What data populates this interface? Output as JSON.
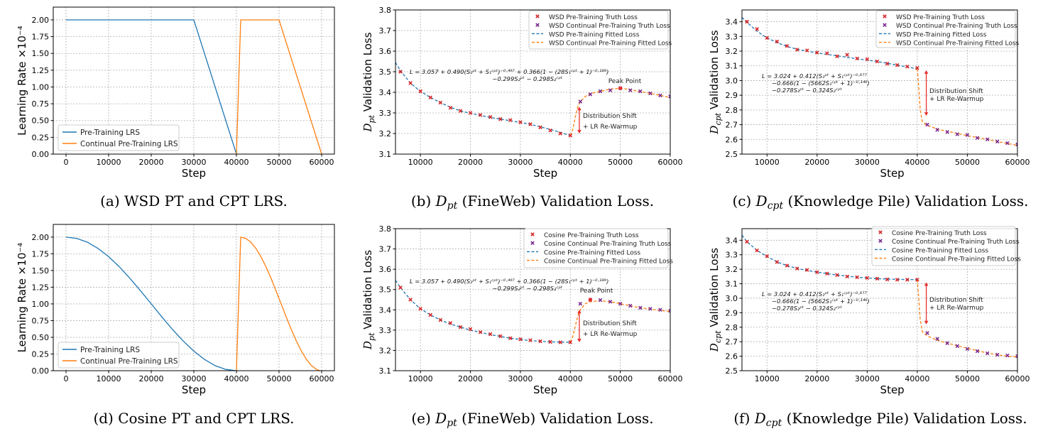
{
  "colors": {
    "pt_line": "#1f77b4",
    "cpt_line": "#ff7f0e",
    "pt_marker": "#d62728",
    "cpt_marker": "#7b2d8e",
    "arrow": "#e8302f",
    "peak": "#e8302f"
  },
  "chart_data": [
    {
      "id": "a",
      "type": "line",
      "xlabel": "Step",
      "ylabel": "Learning Rate ×10⁻⁴",
      "xlim": [
        -3000,
        63000
      ],
      "ylim": [
        0,
        2.19
      ],
      "xticks": [
        0,
        10000,
        20000,
        30000,
        40000,
        50000,
        60000
      ],
      "yticks": [
        "0.00",
        "0.25",
        "0.50",
        "0.75",
        "1.00",
        "1.25",
        "1.50",
        "1.75",
        "2.00"
      ],
      "grid": true,
      "legend_placement": "lower-left",
      "series": [
        {
          "name": "Pre-Training LRS",
          "style": "solid",
          "color": "#1f77b4",
          "x": [
            0,
            30000,
            40000
          ],
          "y": [
            2,
            2,
            0
          ]
        },
        {
          "name": "Continual Pre-Training LRS",
          "style": "solid",
          "color": "#ff7f0e",
          "x": [
            40000,
            41000,
            50000,
            60000
          ],
          "y": [
            0,
            2,
            2,
            0
          ]
        }
      ],
      "caption": {
        "prefix": "(a) WSD PT and CPT LRS."
      }
    },
    {
      "id": "b",
      "type": "scatter+line",
      "xlabel": "Step",
      "ylabel": {
        "symbol": "D",
        "sub": "pt",
        "text": " Validation Loss"
      },
      "xlim": [
        5000,
        60000
      ],
      "ylim": [
        3.1,
        3.8
      ],
      "xticks": [
        10000,
        20000,
        30000,
        40000,
        50000,
        60000
      ],
      "yticks": [
        "3.1",
        "3.2",
        "3.3",
        "3.4",
        "3.5",
        "3.6",
        "3.7",
        "3.8"
      ],
      "grid": true,
      "legend_placement": "upper-right",
      "series": [
        {
          "name": "WSD Pre-Training Truth Loss",
          "style": "marker",
          "color": "#d62728",
          "x": [
            6000,
            8000,
            10000,
            12000,
            14000,
            16000,
            18000,
            20000,
            22000,
            24000,
            26000,
            28000,
            30000,
            32000,
            34000,
            36000,
            38000,
            40000
          ],
          "y": [
            3.5,
            3.445,
            3.405,
            3.375,
            3.35,
            3.325,
            3.31,
            3.3,
            3.29,
            3.28,
            3.27,
            3.265,
            3.255,
            3.245,
            3.23,
            3.215,
            3.2,
            3.19
          ]
        },
        {
          "name": "WSD Continual Pre-Training Truth Loss",
          "style": "marker",
          "color": "#7b2d8e",
          "x": [
            42000,
            44000,
            46000,
            48000,
            50000,
            52000,
            54000,
            56000,
            58000,
            60000
          ],
          "y": [
            3.355,
            3.39,
            3.405,
            3.41,
            3.42,
            3.41,
            3.405,
            3.395,
            3.385,
            3.38
          ]
        },
        {
          "name": "WSD Pre-Training Fitted Loss",
          "style": "dashed",
          "color": "#1f77b4",
          "x": [
            5000,
            6000,
            8000,
            10000,
            12000,
            14000,
            16000,
            18000,
            20000,
            24000,
            28000,
            32000,
            36000,
            40000
          ],
          "y": [
            3.545,
            3.505,
            3.445,
            3.405,
            3.375,
            3.35,
            3.328,
            3.31,
            3.298,
            3.278,
            3.262,
            3.245,
            3.22,
            3.19
          ]
        },
        {
          "name": "WSD Continual Pre-Training Fitted Loss",
          "style": "dashed",
          "color": "#ff7f0e",
          "x": [
            40000,
            40500,
            41000,
            41500,
            42000,
            43000,
            44000,
            46000,
            48000,
            50000,
            52000,
            54000,
            56000,
            58000,
            60000
          ],
          "y": [
            3.19,
            3.22,
            3.28,
            3.33,
            3.355,
            3.38,
            3.393,
            3.405,
            3.415,
            3.42,
            3.413,
            3.403,
            3.395,
            3.385,
            3.375
          ]
        }
      ],
      "peak": {
        "label": "Peak Point",
        "x": 50000,
        "y": 3.42
      },
      "arrow": {
        "x": 41800,
        "y_from": 3.33,
        "y_to": 3.2,
        "line1": "Distribution Shift",
        "line2": "+ LR Re-Warmup"
      },
      "formula": [
        "L = 3.057 + 0.490(S₁ᵖᵗ + S₁ᶜᵖᵗ)⁻⁰·⁴⁹⁷ + 0.366(1 − (28S₁ᶜᵖᵗ + 1)⁻⁰·¹⁸⁹)",
        "−0.299S₂ᵖᵗ − 0.298S₂ᶜᵖᵗ"
      ],
      "caption": {
        "prefix": "(b) ",
        "symbol": "D",
        "sub": "pt",
        "suffix": " (FineWeb) Validation Loss."
      }
    },
    {
      "id": "c",
      "type": "scatter+line",
      "xlabel": "Step",
      "ylabel": {
        "symbol": "D",
        "sub": "cpt",
        "text": " Validation Loss"
      },
      "xlim": [
        5000,
        60000
      ],
      "ylim": [
        2.5,
        3.48
      ],
      "xticks": [
        10000,
        20000,
        30000,
        40000,
        50000,
        60000
      ],
      "yticks": [
        "2.5",
        "2.6",
        "2.7",
        "2.8",
        "2.9",
        "3.0",
        "3.1",
        "3.2",
        "3.3",
        "3.4"
      ],
      "grid": true,
      "legend_placement": "upper-right",
      "series": [
        {
          "name": "WSD Pre-Training Truth Loss",
          "style": "marker",
          "color": "#d62728",
          "x": [
            6000,
            8000,
            10000,
            12000,
            14000,
            16000,
            18000,
            20000,
            22000,
            24000,
            26000,
            28000,
            30000,
            32000,
            34000,
            36000,
            38000,
            40000
          ],
          "y": [
            3.4,
            3.35,
            3.29,
            3.265,
            3.235,
            3.21,
            3.205,
            3.19,
            3.185,
            3.165,
            3.175,
            3.15,
            3.145,
            3.13,
            3.115,
            3.105,
            3.095,
            3.085
          ]
        },
        {
          "name": "WSD Continual Pre-Training Truth Loss",
          "style": "marker",
          "color": "#7b2d8e",
          "x": [
            42000,
            44000,
            46000,
            48000,
            50000,
            52000,
            54000,
            56000,
            58000,
            60000
          ],
          "y": [
            2.7,
            2.665,
            2.65,
            2.635,
            2.63,
            2.61,
            2.6,
            2.585,
            2.575,
            2.565
          ]
        },
        {
          "name": "WSD Pre-Training Fitted Loss",
          "style": "dashed",
          "color": "#1f77b4",
          "x": [
            5000,
            6000,
            8000,
            10000,
            12000,
            14000,
            16000,
            18000,
            20000,
            24000,
            28000,
            32000,
            36000,
            40000
          ],
          "y": [
            3.43,
            3.395,
            3.335,
            3.29,
            3.258,
            3.232,
            3.213,
            3.2,
            3.188,
            3.168,
            3.148,
            3.13,
            3.105,
            3.08
          ]
        },
        {
          "name": "WSD Continual Pre-Training Fitted Loss",
          "style": "dashed",
          "color": "#ff7f0e",
          "x": [
            40000,
            40300,
            40600,
            41000,
            42000,
            44000,
            46000,
            48000,
            50000,
            52000,
            54000,
            56000,
            58000,
            60000
          ],
          "y": [
            3.08,
            2.95,
            2.8,
            2.72,
            2.695,
            2.67,
            2.655,
            2.64,
            2.625,
            2.612,
            2.6,
            2.585,
            2.572,
            2.56
          ]
        }
      ],
      "arrow": {
        "x": 41800,
        "y_from": 3.07,
        "y_to": 2.76,
        "line1": "Distribution Shift",
        "line2": "+ LR Re-Warmup"
      },
      "formula": [
        "L = 3.024 + 0.412(S₁ᵖᵗ + S₁ᶜᵖᵗ)⁻⁰·⁶⁷⁷",
        "−0.666(1 − (5662S₁ᶜᵖᵗ + 1)⁻⁰·¹⁴⁶)",
        "−0.278S₂ᵖᵗ − 0.324S₂ᶜᵖᵗ"
      ],
      "caption": {
        "prefix": "(c) ",
        "symbol": "D",
        "sub": "cpt",
        "suffix": " (Knowledge Pile) Validation Loss."
      }
    },
    {
      "id": "d",
      "type": "line",
      "xlabel": "Step",
      "ylabel": "Learning Rate ×10⁻⁴",
      "xlim": [
        -3000,
        63000
      ],
      "ylim": [
        0,
        2.19
      ],
      "xticks": [
        0,
        10000,
        20000,
        30000,
        40000,
        50000,
        60000
      ],
      "yticks": [
        "0.00",
        "0.25",
        "0.50",
        "0.75",
        "1.00",
        "1.25",
        "1.50",
        "1.75",
        "2.00"
      ],
      "grid": true,
      "legend_placement": "lower-left",
      "series": [
        {
          "name": "Pre-Training LRS",
          "style": "solid",
          "color": "#1f77b4",
          "x": [
            0,
            2500,
            5000,
            7500,
            10000,
            12500,
            15000,
            17500,
            20000,
            22500,
            25000,
            27500,
            30000,
            32500,
            35000,
            37500,
            40000
          ],
          "y": [
            2,
            1.981,
            1.924,
            1.831,
            1.707,
            1.556,
            1.383,
            1.195,
            1.0,
            0.805,
            0.617,
            0.444,
            0.293,
            0.169,
            0.076,
            0.019,
            0
          ]
        },
        {
          "name": "Continual Pre-Training LRS",
          "style": "solid",
          "color": "#ff7f0e",
          "x": [
            40000,
            41000,
            42200,
            43375,
            44560,
            45750,
            46940,
            48125,
            49300,
            50500,
            51690,
            52875,
            54060,
            55250,
            56440,
            57625,
            58800,
            59600
          ],
          "y": [
            0,
            2,
            1.981,
            1.924,
            1.831,
            1.707,
            1.556,
            1.383,
            1.195,
            1.0,
            0.805,
            0.617,
            0.444,
            0.293,
            0.169,
            0.076,
            0.019,
            0
          ]
        }
      ],
      "caption": {
        "prefix": "(d) Cosine PT and CPT LRS."
      }
    },
    {
      "id": "e",
      "type": "scatter+line",
      "xlabel": "Step",
      "ylabel": {
        "symbol": "D",
        "sub": "pt",
        "text": " Validation Loss"
      },
      "xlim": [
        5000,
        60000
      ],
      "ylim": [
        3.1,
        3.8
      ],
      "xticks": [
        10000,
        20000,
        30000,
        40000,
        50000,
        60000
      ],
      "yticks": [
        "3.1",
        "3.2",
        "3.3",
        "3.4",
        "3.5",
        "3.6",
        "3.7",
        "3.8"
      ],
      "grid": true,
      "legend_placement": "upper-right",
      "series": [
        {
          "name": "Cosine Pre-Training Truth Loss",
          "style": "marker",
          "color": "#d62728",
          "x": [
            6000,
            8000,
            10000,
            12000,
            14000,
            16000,
            18000,
            20000,
            22000,
            24000,
            26000,
            28000,
            30000,
            32000,
            34000,
            36000,
            38000,
            40000
          ],
          "y": [
            3.51,
            3.45,
            3.405,
            3.375,
            3.35,
            3.335,
            3.315,
            3.305,
            3.29,
            3.28,
            3.27,
            3.26,
            3.255,
            3.25,
            3.245,
            3.242,
            3.24,
            3.24
          ]
        },
        {
          "name": "Cosine Continual Pre-Training Truth Loss",
          "style": "marker",
          "color": "#7b2d8e",
          "x": [
            42000,
            44000,
            46000,
            48000,
            50000,
            52000,
            54000,
            56000,
            58000,
            60000
          ],
          "y": [
            3.43,
            3.45,
            3.448,
            3.44,
            3.43,
            3.42,
            3.41,
            3.405,
            3.4,
            3.395
          ]
        },
        {
          "name": "Cosine Pre-Training Fitted Loss",
          "style": "dashed",
          "color": "#1f77b4",
          "x": [
            5000,
            6000,
            8000,
            10000,
            12000,
            14000,
            16000,
            18000,
            20000,
            24000,
            28000,
            32000,
            36000,
            40000
          ],
          "y": [
            3.545,
            3.51,
            3.45,
            3.405,
            3.375,
            3.35,
            3.33,
            3.315,
            3.3,
            3.278,
            3.26,
            3.248,
            3.242,
            3.24
          ]
        },
        {
          "name": "Cosine Continual Pre-Training Fitted Loss",
          "style": "dashed",
          "color": "#ff7f0e",
          "x": [
            40000,
            40500,
            41000,
            41500,
            42000,
            43000,
            44000,
            46000,
            48000,
            50000,
            52000,
            54000,
            56000,
            58000,
            60000
          ],
          "y": [
            3.24,
            3.27,
            3.32,
            3.37,
            3.4,
            3.43,
            3.44,
            3.445,
            3.44,
            3.43,
            3.42,
            3.41,
            3.403,
            3.397,
            3.392
          ]
        }
      ],
      "peak": {
        "label": "Peak Point",
        "x": 44000,
        "y": 3.45
      },
      "arrow": {
        "x": 41800,
        "y_from": 3.4,
        "y_to": 3.24,
        "line1": "Distribution Shift",
        "line2": "+ LR Re-Warmup"
      },
      "formula": [
        "L = 3.057 + 0.490(S₁ᵖᵗ + S₁ᶜᵖᵗ)⁻⁰·⁴⁹⁷ + 0.366(1 − (28S₁ᶜᵖᵗ + 1)⁻⁰·¹⁸⁹)",
        "−0.299S₂ᵖᵗ − 0.298S₂ᶜᵖᵗ"
      ],
      "caption": {
        "prefix": "(e) ",
        "symbol": "D",
        "sub": "pt",
        "suffix": " (FineWeb) Validation Loss."
      }
    },
    {
      "id": "f",
      "type": "scatter+line",
      "xlabel": "Step",
      "ylabel": {
        "symbol": "D",
        "sub": "cpt",
        "text": " Validation Loss"
      },
      "xlim": [
        5000,
        60000
      ],
      "ylim": [
        2.5,
        3.48
      ],
      "xticks": [
        10000,
        20000,
        30000,
        40000,
        50000,
        60000
      ],
      "yticks": [
        "2.5",
        "2.6",
        "2.7",
        "2.8",
        "2.9",
        "3.0",
        "3.1",
        "3.2",
        "3.3",
        "3.4"
      ],
      "grid": true,
      "legend_placement": "upper-right",
      "series": [
        {
          "name": "Cosine Pre-Training Truth Loss",
          "style": "marker",
          "color": "#d62728",
          "x": [
            6000,
            8000,
            10000,
            12000,
            14000,
            16000,
            18000,
            20000,
            22000,
            24000,
            26000,
            28000,
            30000,
            32000,
            34000,
            36000,
            38000,
            40000
          ],
          "y": [
            3.39,
            3.33,
            3.29,
            3.25,
            3.225,
            3.205,
            3.195,
            3.18,
            3.17,
            3.16,
            3.15,
            3.145,
            3.14,
            3.135,
            3.13,
            3.128,
            3.128,
            3.128
          ]
        },
        {
          "name": "Cosine Continual Pre-Training Truth Loss",
          "style": "marker",
          "color": "#7b2d8e",
          "x": [
            42000,
            44000,
            46000,
            48000,
            50000,
            52000,
            54000,
            56000,
            58000,
            60000
          ],
          "y": [
            2.76,
            2.72,
            2.69,
            2.67,
            2.65,
            2.635,
            2.62,
            2.61,
            2.605,
            2.6
          ]
        },
        {
          "name": "Cosine Pre-Training Fitted Loss",
          "style": "dashed",
          "color": "#1f77b4",
          "x": [
            5000,
            6000,
            8000,
            10000,
            12000,
            14000,
            16000,
            18000,
            20000,
            24000,
            28000,
            32000,
            36000,
            40000
          ],
          "y": [
            3.435,
            3.39,
            3.33,
            3.288,
            3.25,
            3.225,
            3.205,
            3.192,
            3.18,
            3.16,
            3.145,
            3.135,
            3.13,
            3.128
          ]
        },
        {
          "name": "Cosine Continual Pre-Training Fitted Loss",
          "style": "dashed",
          "color": "#ff7f0e",
          "x": [
            40000,
            40300,
            40600,
            41000,
            42000,
            44000,
            46000,
            48000,
            50000,
            52000,
            54000,
            56000,
            58000,
            60000
          ],
          "y": [
            3.128,
            3.0,
            2.85,
            2.77,
            2.74,
            2.71,
            2.69,
            2.672,
            2.655,
            2.638,
            2.622,
            2.61,
            2.6,
            2.595
          ]
        }
      ],
      "arrow": {
        "x": 41800,
        "y_from": 3.11,
        "y_to": 2.82,
        "line1": "Distribution Shift",
        "line2": "+ LR Re-Warmup"
      },
      "formula": [
        "L = 3.024 + 0.412(S₁ᵖᵗ + S₁ᶜᵖᵗ)⁻⁰·⁶⁷⁷",
        "−0.666(1 − (5662S₁ᶜᵖᵗ + 1)⁻⁰·¹⁴⁶)",
        "−0.278S₂ᵖᵗ − 0.324S₂ᶜᵖᵗ"
      ],
      "caption": {
        "prefix": "(f) ",
        "symbol": "D",
        "sub": "cpt",
        "suffix": " (Knowledge Pile) Validation Loss."
      }
    }
  ]
}
